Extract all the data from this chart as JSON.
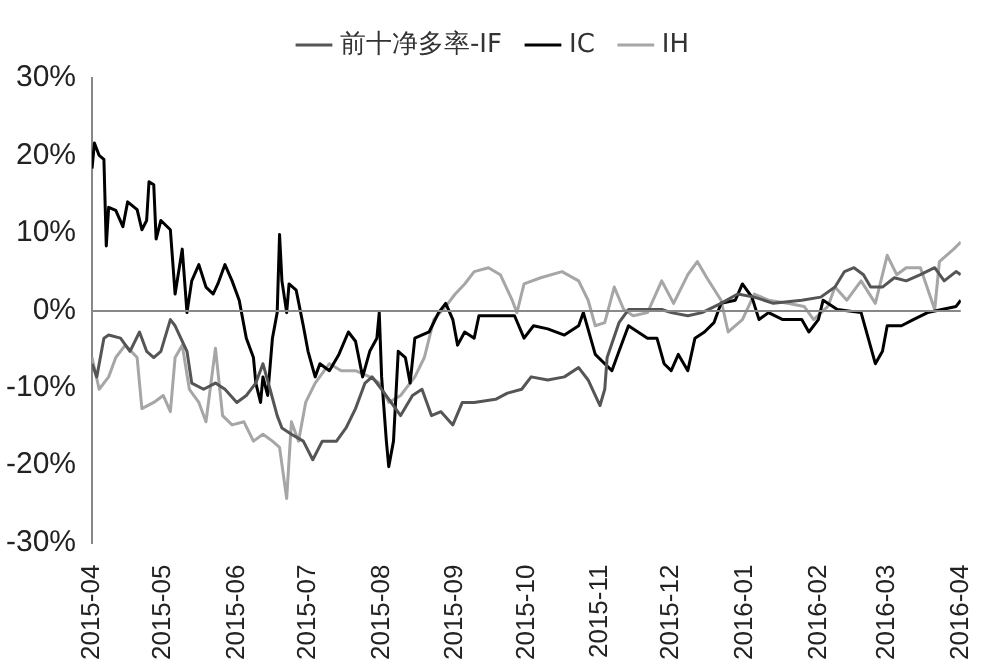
{
  "chart_data": {
    "type": "line",
    "legend": "top",
    "marker": "none",
    "line_style": "solid",
    "xlim": [
      "2015-04-01",
      "2016-04-01"
    ],
    "xticks": [
      "2015-04",
      "2015-05",
      "2015-06",
      "2015-07",
      "2015-08",
      "2015-09",
      "2015-10",
      "2015-11",
      "2015-12",
      "2016-01",
      "2016-02",
      "2016-03",
      "2016-04"
    ],
    "ylim": [
      -30,
      30
    ],
    "yticks": [
      {
        "value": -30,
        "label": "-30%"
      },
      {
        "value": -20,
        "label": "-20%"
      },
      {
        "value": -10,
        "label": "-10%"
      },
      {
        "value": 0,
        "label": "0%"
      },
      {
        "value": 10,
        "label": "10%"
      },
      {
        "value": 20,
        "label": "20%"
      },
      {
        "value": 30,
        "label": "30%"
      }
    ],
    "series": [
      {
        "name": "前十净多率-IF",
        "color": "#555555",
        "x": [
          "2015-04-01",
          "2015-04-03",
          "2015-04-06",
          "2015-04-08",
          "2015-04-13",
          "2015-04-17",
          "2015-04-21",
          "2015-04-24",
          "2015-04-27",
          "2015-04-30",
          "2015-05-04",
          "2015-05-06",
          "2015-05-11",
          "2015-05-13",
          "2015-05-18",
          "2015-05-23",
          "2015-05-27",
          "2015-06-01",
          "2015-06-05",
          "2015-06-09",
          "2015-06-12",
          "2015-06-15",
          "2015-06-18",
          "2015-06-20",
          "2015-06-24",
          "2015-06-29",
          "2015-07-03",
          "2015-07-07",
          "2015-07-13",
          "2015-07-17",
          "2015-07-21",
          "2015-07-25",
          "2015-07-28",
          "2015-08-01",
          "2015-08-05",
          "2015-08-09",
          "2015-08-14",
          "2015-08-18",
          "2015-08-22",
          "2015-08-26",
          "2015-08-31",
          "2015-09-04",
          "2015-09-09",
          "2015-09-18",
          "2015-09-23",
          "2015-09-29",
          "2015-10-03",
          "2015-10-10",
          "2015-10-17",
          "2015-10-23",
          "2015-10-27",
          "2015-10-30",
          "2015-11-01",
          "2015-11-03",
          "2015-11-04",
          "2015-11-09",
          "2015-11-13",
          "2015-11-18",
          "2015-11-27",
          "2015-12-01",
          "2015-12-08",
          "2015-12-14",
          "2015-12-22",
          "2015-12-29",
          "2016-01-05",
          "2016-01-13",
          "2016-01-25",
          "2016-02-02",
          "2016-02-08",
          "2016-02-12",
          "2016-02-16",
          "2016-02-20",
          "2016-02-23",
          "2016-02-28",
          "2016-03-04",
          "2016-03-09",
          "2016-03-15",
          "2016-03-21",
          "2016-03-25",
          "2016-03-30",
          "2016-04-01"
        ],
        "values": [
          -6.9,
          -8.6,
          -3.6,
          -3.2,
          -3.6,
          -5.3,
          -2.8,
          -5.3,
          -6.1,
          -5.3,
          -1.2,
          -2,
          -5.3,
          -9.4,
          -10.2,
          -9.4,
          -10.2,
          -11.9,
          -11,
          -9.4,
          -6.9,
          -10.2,
          -13.6,
          -15.2,
          -16,
          -16.9,
          -19.3,
          -16.9,
          -16.9,
          -15.2,
          -12.7,
          -9.4,
          -8.6,
          -10.2,
          -11.9,
          -13.6,
          -11,
          -10.2,
          -13.6,
          -13.1,
          -14.8,
          -11.9,
          -11.9,
          -11.5,
          -10.7,
          -10.2,
          -8.6,
          -9,
          -8.6,
          -7.4,
          -9,
          -11,
          -12.3,
          -10.2,
          -6.1,
          -1.6,
          0.1,
          0.1,
          0.1,
          -0.3,
          -0.7,
          -0.3,
          0.9,
          2.1,
          1.7,
          0.9,
          1.3,
          1.7,
          3,
          5,
          5.5,
          4.6,
          3,
          3,
          4.2,
          3.8,
          4.6,
          5.5,
          3.8,
          5,
          4.6
        ]
      },
      {
        "name": "IC",
        "color": "#000000",
        "x": [
          "2015-04-01",
          "2015-04-02",
          "2015-04-04",
          "2015-04-06",
          "2015-04-07",
          "2015-04-08",
          "2015-04-11",
          "2015-04-14",
          "2015-04-16",
          "2015-04-20",
          "2015-04-22",
          "2015-04-24",
          "2015-04-25",
          "2015-04-27",
          "2015-04-28",
          "2015-04-30",
          "2015-05-04",
          "2015-05-06",
          "2015-05-09",
          "2015-05-11",
          "2015-05-13",
          "2015-05-16",
          "2015-05-19",
          "2015-05-22",
          "2015-05-24",
          "2015-05-27",
          "2015-05-30",
          "2015-06-02",
          "2015-06-05",
          "2015-06-08",
          "2015-06-09",
          "2015-06-11",
          "2015-06-12",
          "2015-06-14",
          "2015-06-16",
          "2015-06-18",
          "2015-06-19",
          "2015-06-20",
          "2015-06-22",
          "2015-06-23",
          "2015-06-26",
          "2015-06-29",
          "2015-07-01",
          "2015-07-04",
          "2015-07-06",
          "2015-07-10",
          "2015-07-14",
          "2015-07-18",
          "2015-07-21",
          "2015-07-24",
          "2015-07-27",
          "2015-07-30",
          "2015-07-31",
          "2015-08-01",
          "2015-08-03",
          "2015-08-04",
          "2015-08-06",
          "2015-08-08",
          "2015-08-11",
          "2015-08-13",
          "2015-08-15",
          "2015-08-21",
          "2015-08-25",
          "2015-08-28",
          "2015-08-31",
          "2015-09-02",
          "2015-09-05",
          "2015-09-09",
          "2015-09-11",
          "2015-09-26",
          "2015-09-30",
          "2015-10-04",
          "2015-10-10",
          "2015-10-17",
          "2015-10-23",
          "2015-10-25",
          "2015-10-30",
          "2015-11-03",
          "2015-11-06",
          "2015-11-09",
          "2015-11-13",
          "2015-11-17",
          "2015-11-21",
          "2015-11-25",
          "2015-11-28",
          "2015-12-01",
          "2015-12-04",
          "2015-12-08",
          "2015-12-11",
          "2015-12-15",
          "2015-12-19",
          "2015-12-22",
          "2015-12-28",
          "2015-12-31",
          "2016-01-04",
          "2016-01-07",
          "2016-01-11",
          "2016-01-17",
          "2016-01-25",
          "2016-01-28",
          "2016-02-01",
          "2016-02-03",
          "2016-02-09",
          "2016-02-19",
          "2016-02-22",
          "2016-02-25",
          "2016-02-28",
          "2016-03-01",
          "2016-03-07",
          "2016-03-12",
          "2016-03-18",
          "2016-03-24",
          "2016-03-30",
          "2016-04-01"
        ],
        "values": [
          18.3,
          21.6,
          20,
          19.5,
          8.3,
          13.3,
          12.9,
          10.8,
          14,
          13,
          10.4,
          11.6,
          16.6,
          16.2,
          9.2,
          11.6,
          10.4,
          2.1,
          7.9,
          -0.3,
          3.8,
          5.9,
          3,
          2.1,
          3.4,
          5.9,
          3.8,
          1.3,
          -3.6,
          -6.1,
          -9.4,
          -11.9,
          -8.6,
          -11,
          -3.6,
          -0.3,
          9.8,
          3.8,
          -0.3,
          3.4,
          2.6,
          -2,
          -5.3,
          -8.6,
          -6.9,
          -7.8,
          -5.7,
          -2.8,
          -4,
          -8.6,
          -5.3,
          -3.6,
          -0.3,
          -8.6,
          -16.9,
          -20.2,
          -16.9,
          -5.3,
          -6.1,
          -9.4,
          -3.6,
          -2.8,
          -0.3,
          0.9,
          -1.2,
          -4.5,
          -2.8,
          -3.6,
          -0.7,
          -0.7,
          -3.6,
          -2,
          -2.4,
          -3.2,
          -2,
          -0.3,
          -5.7,
          -6.9,
          -7.8,
          -5.3,
          -2,
          -2.8,
          -3.6,
          -3.6,
          -6.9,
          -7.8,
          -5.7,
          -7.8,
          -3.6,
          -2.8,
          -1.6,
          0.9,
          1.3,
          3.4,
          1.7,
          -1.2,
          -0.3,
          -1.2,
          -1.2,
          -2.8,
          -1.2,
          1.3,
          0.1,
          -0.3,
          -3.6,
          -6.9,
          -5.3,
          -2,
          -2,
          -1.2,
          -0.3,
          0.1,
          0.5,
          1.3
        ]
      },
      {
        "name": "IH",
        "color": "#a6a6a6",
        "x": [
          "2015-04-01",
          "2015-04-04",
          "2015-04-08",
          "2015-04-11",
          "2015-04-15",
          "2015-04-20",
          "2015-04-22",
          "2015-04-27",
          "2015-05-01",
          "2015-05-04",
          "2015-05-06",
          "2015-05-09",
          "2015-05-12",
          "2015-05-16",
          "2015-05-19",
          "2015-05-23",
          "2015-05-26",
          "2015-05-30",
          "2015-06-04",
          "2015-06-08",
          "2015-06-12",
          "2015-06-16",
          "2015-06-19",
          "2015-06-22",
          "2015-06-24",
          "2015-06-27",
          "2015-06-30",
          "2015-07-04",
          "2015-07-10",
          "2015-07-15",
          "2015-07-21",
          "2015-07-27",
          "2015-07-31",
          "2015-08-04",
          "2015-08-09",
          "2015-08-15",
          "2015-08-19",
          "2015-08-23",
          "2015-08-28",
          "2015-09-01",
          "2015-09-05",
          "2015-09-09",
          "2015-09-15",
          "2015-09-20",
          "2015-09-25",
          "2015-09-27",
          "2015-09-30",
          "2015-10-07",
          "2015-10-16",
          "2015-10-23",
          "2015-10-27",
          "2015-10-30",
          "2015-11-03",
          "2015-11-07",
          "2015-11-11",
          "2015-11-15",
          "2015-11-21",
          "2015-11-27",
          "2015-12-02",
          "2015-12-08",
          "2015-12-12",
          "2015-12-16",
          "2015-12-22",
          "2015-12-25",
          "2015-12-31",
          "2016-01-05",
          "2016-01-11",
          "2016-01-19",
          "2016-01-26",
          "2016-01-30",
          "2016-02-05",
          "2016-02-08",
          "2016-02-13",
          "2016-02-19",
          "2016-02-25",
          "2016-03-01",
          "2016-03-05",
          "2016-03-09",
          "2016-03-15",
          "2016-03-21",
          "2016-03-23",
          "2016-03-29",
          "2016-04-01"
        ],
        "values": [
          -6.1,
          -10.2,
          -8.6,
          -6.1,
          -4.5,
          -6.1,
          -12.7,
          -11.9,
          -11,
          -13.1,
          -6.1,
          -4.5,
          -10.2,
          -11.9,
          -14.4,
          -4.9,
          -13.6,
          -14.8,
          -14.4,
          -16.9,
          -16,
          -16.9,
          -17.7,
          -24.3,
          -14.4,
          -16.9,
          -11.9,
          -9.4,
          -6.9,
          -7.8,
          -7.8,
          -8.6,
          -9.4,
          -11.9,
          -11,
          -8.6,
          -6.1,
          -1.2,
          0.5,
          2.1,
          3.4,
          5,
          5.5,
          4.6,
          1.3,
          -0.3,
          3.4,
          4.2,
          5,
          3.8,
          1.3,
          -2,
          -1.6,
          3,
          0.1,
          -0.7,
          -0.3,
          3.8,
          0.9,
          4.6,
          6.3,
          4.2,
          1.3,
          -2.8,
          -1.2,
          2.1,
          1.3,
          0.9,
          0.5,
          -1.2,
          0.5,
          3,
          1.3,
          3.8,
          0.9,
          7.1,
          4.6,
          5.5,
          5.5,
          0.1,
          6.3,
          7.9,
          8.8
        ]
      }
    ]
  }
}
